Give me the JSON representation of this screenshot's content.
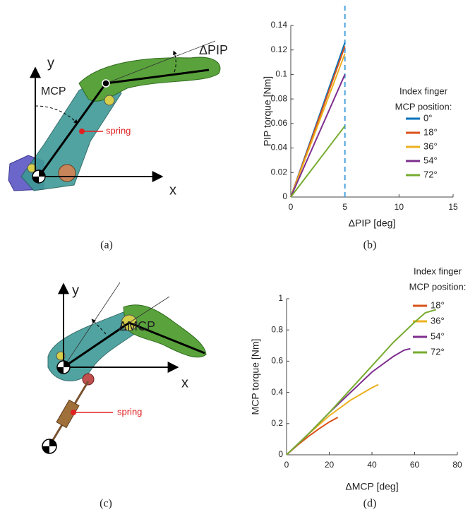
{
  "chart_data": [
    {
      "type": "line",
      "x_label": "ΔPIP [deg]",
      "y_label": "PIP torque [Nm]",
      "xlim": [
        0,
        15
      ],
      "xticks": [
        0,
        5,
        10,
        15
      ],
      "ylim": [
        0,
        0.14
      ],
      "yticks": [
        0,
        0.02,
        0.04,
        0.06,
        0.08,
        0.1,
        0.12,
        0.14
      ],
      "vline": 5,
      "legend_title": [
        "Index finger",
        "MCP position:"
      ],
      "series": [
        {
          "name": "0°",
          "color": "#0072bd",
          "x": [
            0,
            5
          ],
          "values": [
            0,
            0.126
          ]
        },
        {
          "name": "18°",
          "color": "#d95319",
          "x": [
            0,
            5
          ],
          "values": [
            0,
            0.123
          ]
        },
        {
          "name": "36°",
          "color": "#edb120",
          "x": [
            0,
            5
          ],
          "values": [
            0,
            0.117
          ]
        },
        {
          "name": "54°",
          "color": "#7e2f8e",
          "x": [
            0,
            5
          ],
          "values": [
            0,
            0.1
          ]
        },
        {
          "name": "72°",
          "color": "#77ac30",
          "x": [
            0,
            5
          ],
          "values": [
            0,
            0.058
          ]
        }
      ]
    },
    {
      "type": "line",
      "x_label": "ΔMCP [deg]",
      "y_label": "MCP torque [Nm]",
      "xlim": [
        0,
        80
      ],
      "xticks": [
        0,
        20,
        40,
        60,
        80
      ],
      "ylim": [
        0,
        1
      ],
      "yticks": [
        0,
        0.2,
        0.4,
        0.6,
        0.8,
        1
      ],
      "legend_title": [
        "Index finger",
        "MCP position:"
      ],
      "series": [
        {
          "name": "18°",
          "color": "#d95319",
          "x": [
            0,
            5,
            10,
            15,
            20,
            24
          ],
          "values": [
            0,
            0.06,
            0.115,
            0.165,
            0.21,
            0.24
          ]
        },
        {
          "name": "36°",
          "color": "#edb120",
          "x": [
            0,
            10,
            20,
            30,
            40,
            43
          ],
          "values": [
            0,
            0.13,
            0.25,
            0.35,
            0.43,
            0.45
          ]
        },
        {
          "name": "54°",
          "color": "#7e2f8e",
          "x": [
            0,
            10,
            20,
            30,
            40,
            50,
            55,
            58
          ],
          "values": [
            0,
            0.13,
            0.27,
            0.4,
            0.53,
            0.63,
            0.67,
            0.68
          ]
        },
        {
          "name": "72°",
          "color": "#77ac30",
          "x": [
            0,
            10,
            20,
            30,
            40,
            50,
            60,
            65,
            70
          ],
          "values": [
            0,
            0.13,
            0.27,
            0.42,
            0.57,
            0.72,
            0.85,
            0.91,
            0.93
          ]
        }
      ]
    }
  ],
  "illustrations": {
    "a": {
      "y_axis": "y",
      "x_axis": "x",
      "angle": "MCP",
      "delta": "ΔPIP",
      "spring": "spring"
    },
    "c": {
      "y_axis": "y",
      "x_axis": "x",
      "delta": "ΔMCP",
      "spring": "spring"
    }
  },
  "captions": [
    "(a)",
    "(b)",
    "(c)",
    "(d)"
  ]
}
